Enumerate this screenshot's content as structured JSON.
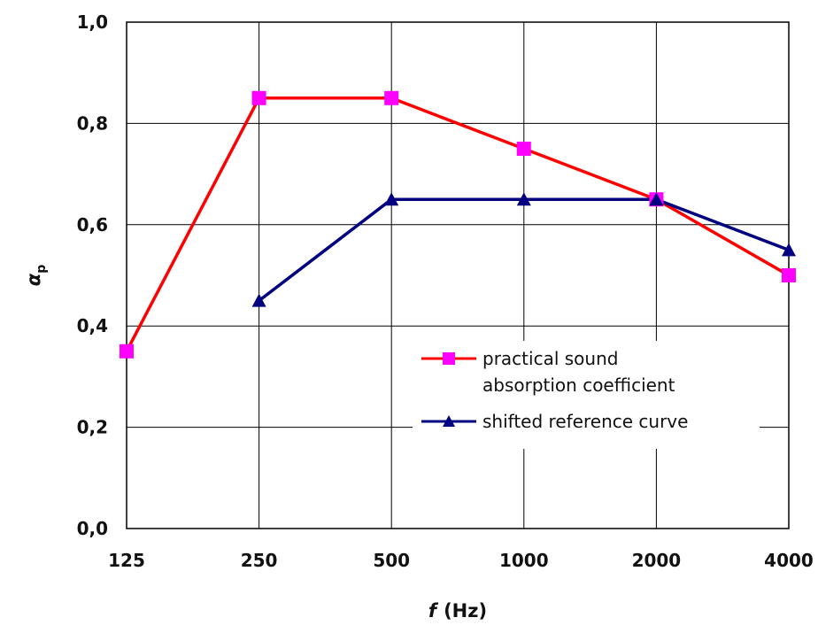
{
  "chart_data": {
    "type": "line",
    "title": "",
    "xlabel": {
      "symbol": "f",
      "unit": "(Hz)"
    },
    "ylabel": {
      "symbol": "α",
      "subscript": "p"
    },
    "categories": [
      "125",
      "250",
      "500",
      "1000",
      "2000",
      "4000"
    ],
    "ylim": [
      0,
      1
    ],
    "yticks": [
      0,
      0.2,
      0.4,
      0.6,
      0.8,
      1.0
    ],
    "ytick_labels": [
      "0,0",
      "0,2",
      "0,4",
      "0,6",
      "0,8",
      "1,0"
    ],
    "grid": true,
    "legend_position": "bottom-right",
    "series": [
      {
        "name_lines": [
          "practical sound",
          "absorption coefficient"
        ],
        "color": "#ff0000",
        "marker": "square",
        "marker_color": "#ff00ff",
        "values": [
          0.35,
          0.85,
          0.85,
          0.75,
          0.65,
          0.5
        ]
      },
      {
        "name_lines": [
          "shifted reference curve"
        ],
        "color": "#000080",
        "marker": "triangle",
        "marker_color": "#000080",
        "values": [
          null,
          0.45,
          0.65,
          0.65,
          0.65,
          0.55
        ]
      }
    ]
  }
}
